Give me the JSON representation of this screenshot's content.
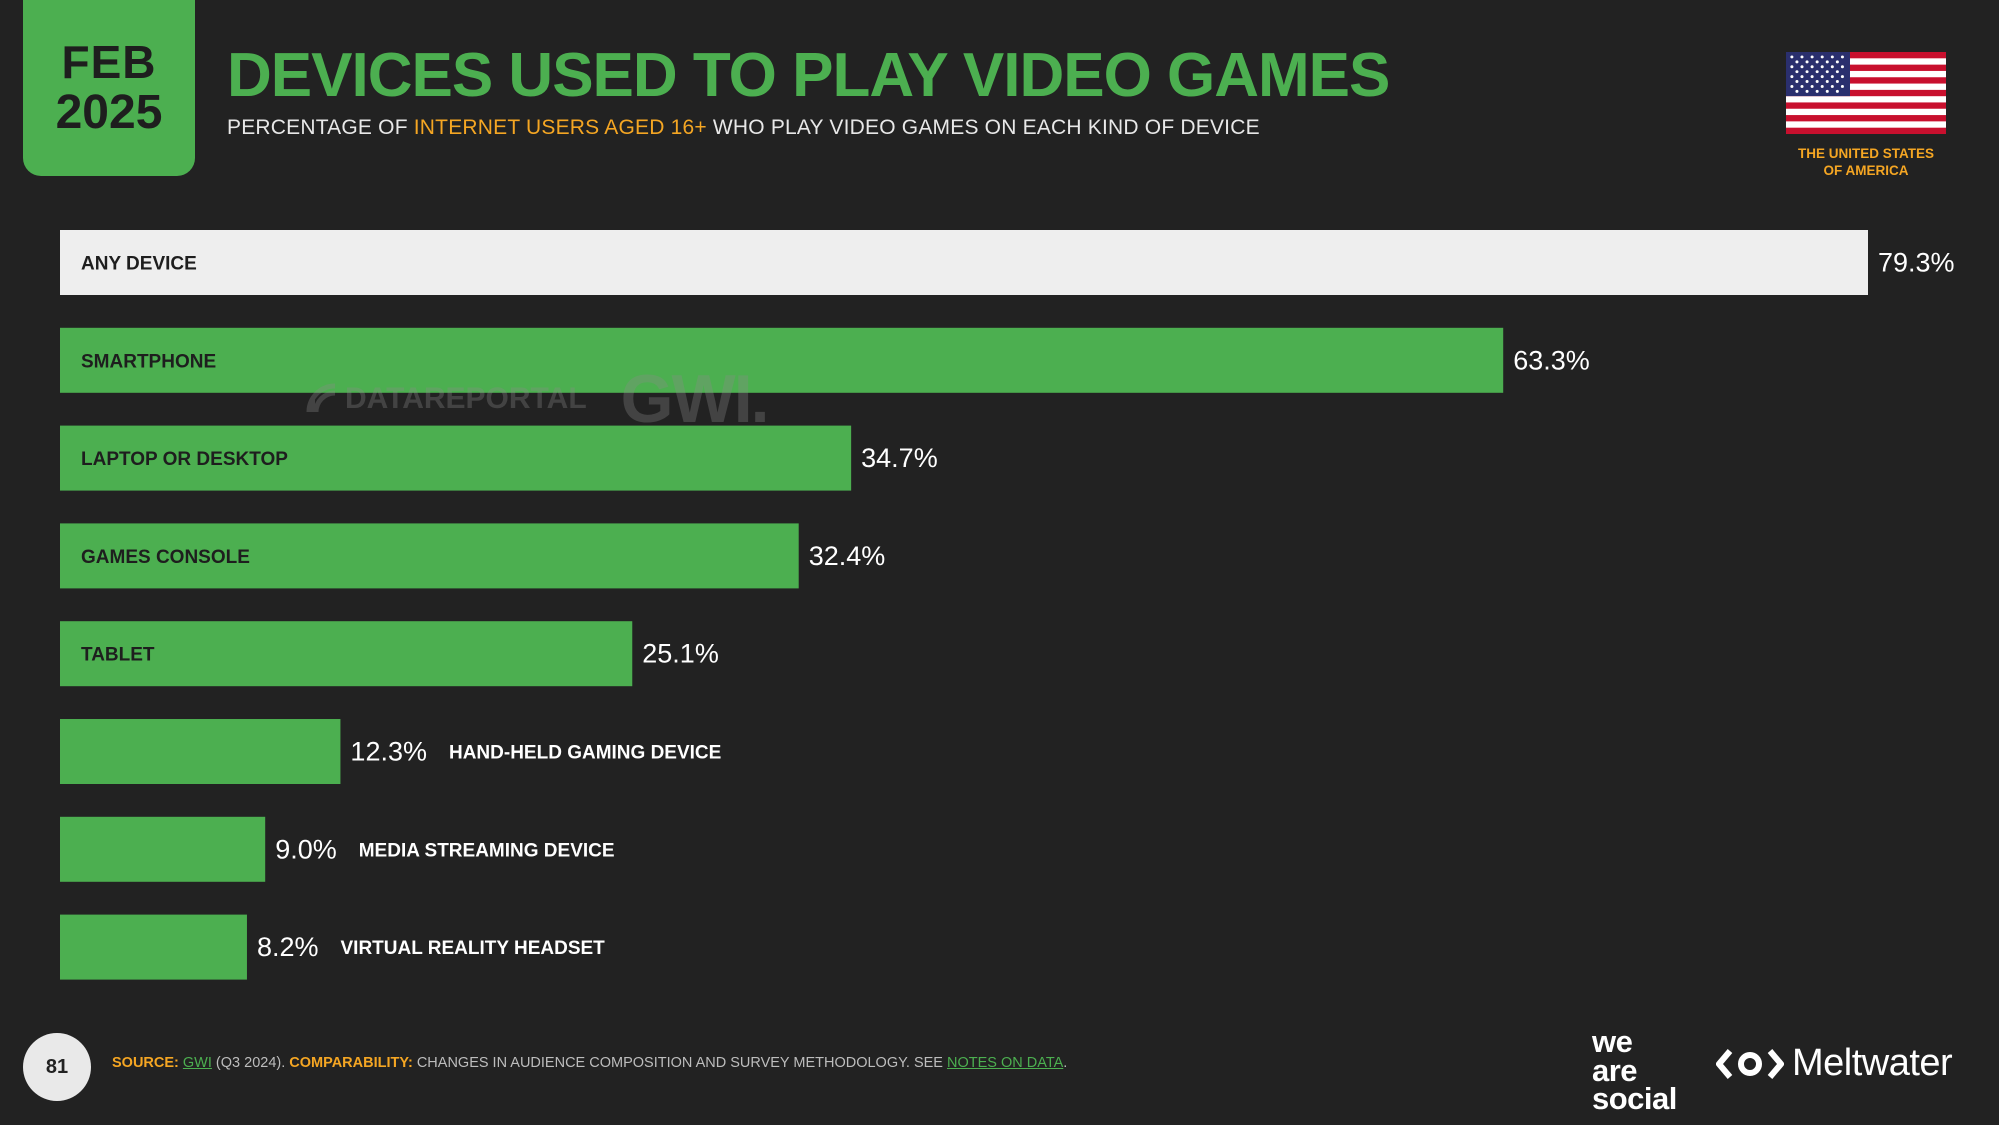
{
  "header": {
    "month": "FEB",
    "year": "2025",
    "title": "DEVICES USED TO PLAY VIDEO GAMES",
    "subtitle_pre": "PERCENTAGE OF ",
    "subtitle_highlight": "INTERNET USERS AGED 16+",
    "subtitle_post": " WHO PLAY VIDEO GAMES ON EACH KIND OF DEVICE"
  },
  "country": {
    "line1": "THE UNITED STATES",
    "line2": "OF AMERICA",
    "flag_icon": "usa-flag-icon"
  },
  "watermark": {
    "brand1": "DATAREPORTAL",
    "brand2": "GWI."
  },
  "colors": {
    "background": "#222222",
    "accent_green": "#4caf50",
    "highlight_orange": "#f5a623",
    "total_bar": "#eeeeee"
  },
  "chart_data": {
    "type": "bar",
    "orientation": "horizontal",
    "title": "DEVICES USED TO PLAY VIDEO GAMES",
    "unit": "%",
    "categories": [
      "ANY DEVICE",
      "SMARTPHONE",
      "LAPTOP OR DESKTOP",
      "GAMES CONSOLE",
      "TABLET",
      "HAND-HELD GAMING DEVICE",
      "MEDIA STREAMING DEVICE",
      "VIRTUAL REALITY HEADSET"
    ],
    "values": [
      79.3,
      63.3,
      34.7,
      32.4,
      25.1,
      12.3,
      9.0,
      8.2
    ],
    "value_labels": [
      "79.3%",
      "63.3%",
      "34.7%",
      "32.4%",
      "25.1%",
      "12.3%",
      "9.0%",
      "8.2%"
    ],
    "highlight_first_bar": true,
    "grid": false,
    "legend": "none"
  },
  "footer": {
    "page_number": "81",
    "source_label": "SOURCE:",
    "source_link": "GWI",
    "source_detail": " (Q3 2024). ",
    "comparability_label": "COMPARABILITY:",
    "comparability_text": " CHANGES IN AUDIENCE COMPOSITION AND SURVEY METHODOLOGY. SEE ",
    "notes_link": "NOTES ON DATA",
    "notes_end": ".",
    "brand_was_1": "we",
    "brand_was_2": "are",
    "brand_was_3": "social",
    "brand_meltwater": "Meltwater"
  }
}
